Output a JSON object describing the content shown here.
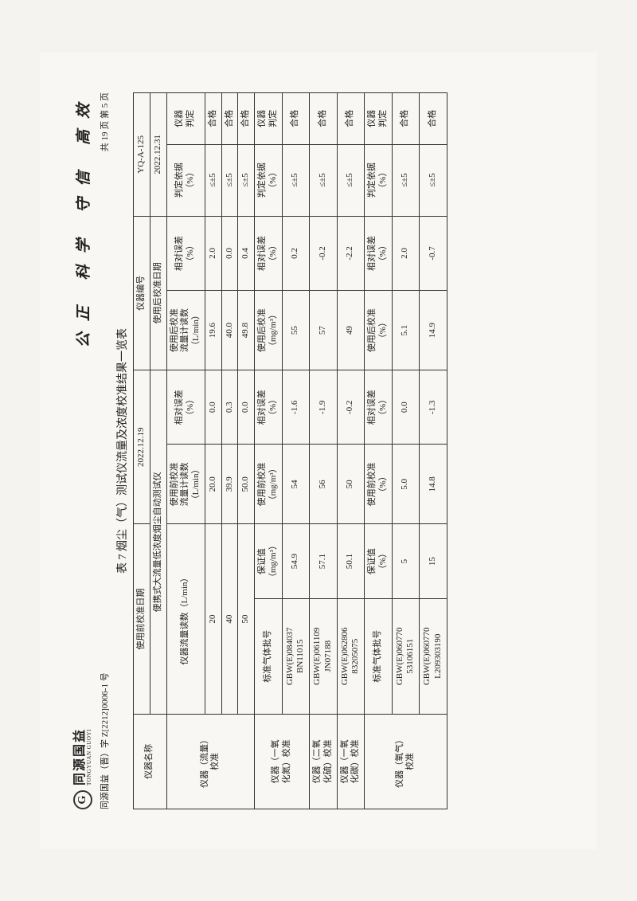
{
  "logo": {
    "mark": "G",
    "main": "同源国益",
    "sub": "TONGYUAN GUOYI"
  },
  "slogan": "公正  科学  守信  高效",
  "doc_number": "同源国益（晋）字 Z[2212]0006-1 号",
  "page_info": "共 19 页    第  5  页",
  "table_title": "表 7 烟尘（气）测试仪流量及浓度校准结果一览表",
  "header": {
    "instrument_name": "仪器名称",
    "pre_cal_date_label": "使用前校准日期",
    "pre_cal_date": "2022.12.19",
    "instrument_no_label": "仪器编号",
    "instrument_no": "YQ-A-125",
    "post_cal_date_label": "使用后校准日期",
    "post_cal_date": "2022.12.31",
    "flow_reading": "仪器流量读数（L/min）",
    "pre_flow": "使用前校准\n流量计读数\n（L/min）",
    "rel_err": "相对误差\n（%）",
    "post_flow": "使用后校准\n流量计读数\n（L/min）",
    "basis": "判定依据\n（%）",
    "judge": "仪器\n判定",
    "std_gas": "标准气体批号",
    "guaranteed_mg": "保证值\n（mg/m³）",
    "pre_mg": "使用前校准\n（mg/m³）",
    "post_mg": "使用后校准\n（mg/m³）",
    "guaranteed_pct": "保证值\n（%）",
    "pre_pct": "使用前校准\n（%）",
    "post_pct": "使用后校准\n（%）"
  },
  "section1": {
    "name": "仪器（流量）\n校准",
    "rows": [
      {
        "v0": "20",
        "r1": "20.0",
        "e1": "0.0",
        "r2": "19.6",
        "e2": "2.0",
        "basis": "≤±5",
        "judge": "合格"
      },
      {
        "v0": "40",
        "r1": "39.9",
        "e1": "0.3",
        "r2": "40.0",
        "e2": "0.0",
        "basis": "≤±5",
        "judge": "合格"
      },
      {
        "v0": "50",
        "r1": "50.0",
        "e1": "0.0",
        "r2": "49.8",
        "e2": "0.4",
        "basis": "≤±5",
        "judge": "合格"
      }
    ]
  },
  "section2": {
    "names": [
      "仪器（一氧\n化氮）校准",
      "仪器（二氧\n化硫）校准",
      "仪器（一氧\n化碳）校准"
    ],
    "rows": [
      {
        "std": "GBW(E)084037\nBN11015",
        "v0": "54.9",
        "r1": "54",
        "e1": "-1.6",
        "r2": "55",
        "e2": "0.2",
        "basis": "≤±5",
        "judge": "合格"
      },
      {
        "std": "GBW(E)061109\nJN07188",
        "v0": "57.1",
        "r1": "56",
        "e1": "-1.9",
        "r2": "57",
        "e2": "-0.2",
        "basis": "≤±5",
        "judge": "合格"
      },
      {
        "std": "GBW(E)062806\n83205075",
        "v0": "50.1",
        "r1": "50",
        "e1": "-0.2",
        "r2": "49",
        "e2": "-2.2",
        "basis": "≤±5",
        "judge": "合格"
      }
    ]
  },
  "section3": {
    "name": "仪器（氧气）\n校准",
    "rows": [
      {
        "std": "GBW(E)060770\n53106151",
        "v0": "5",
        "r1": "5.0",
        "e1": "0.0",
        "r2": "5.1",
        "e2": "2.0",
        "basis": "≤±5",
        "judge": "合格"
      },
      {
        "std": "GBW(E)060770\nL209303190",
        "v0": "15",
        "r1": "14.8",
        "e1": "-1.3",
        "r2": "14.9",
        "e2": "-0.7",
        "basis": "≤±5",
        "judge": "合格"
      }
    ]
  },
  "instrument_type": "便携式大流量低浓度烟尘自动测试仪"
}
